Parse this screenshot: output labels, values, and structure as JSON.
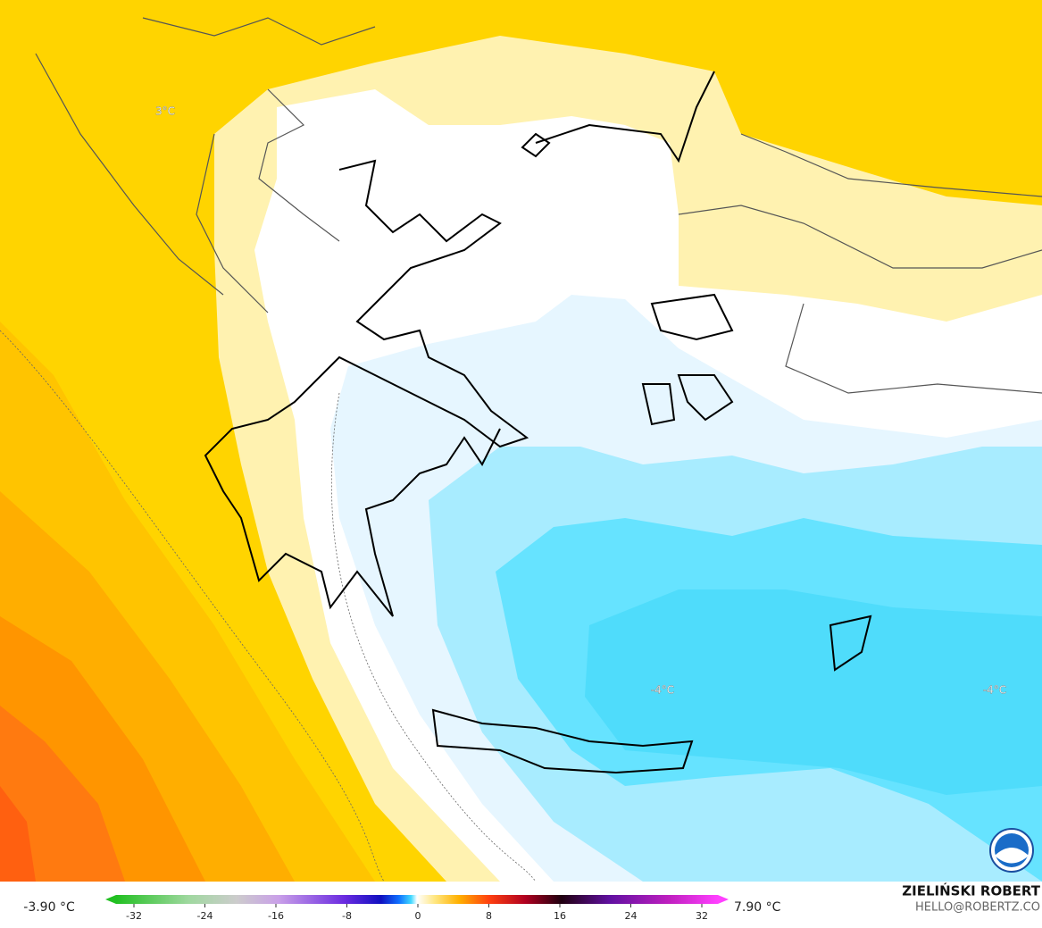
{
  "map_labels": [
    "3°C",
    "-4°C",
    "-4°C"
  ],
  "legend": {
    "min_label": "-3.90 °C",
    "max_label": "7.90 °C",
    "ticks": [
      -32,
      -24,
      -16,
      -8,
      0,
      8,
      16,
      24,
      32
    ]
  },
  "credit": {
    "name": "ZIELIŃSKI ROBERT",
    "contact": "HELLO@ROBERTZ.CO"
  }
}
